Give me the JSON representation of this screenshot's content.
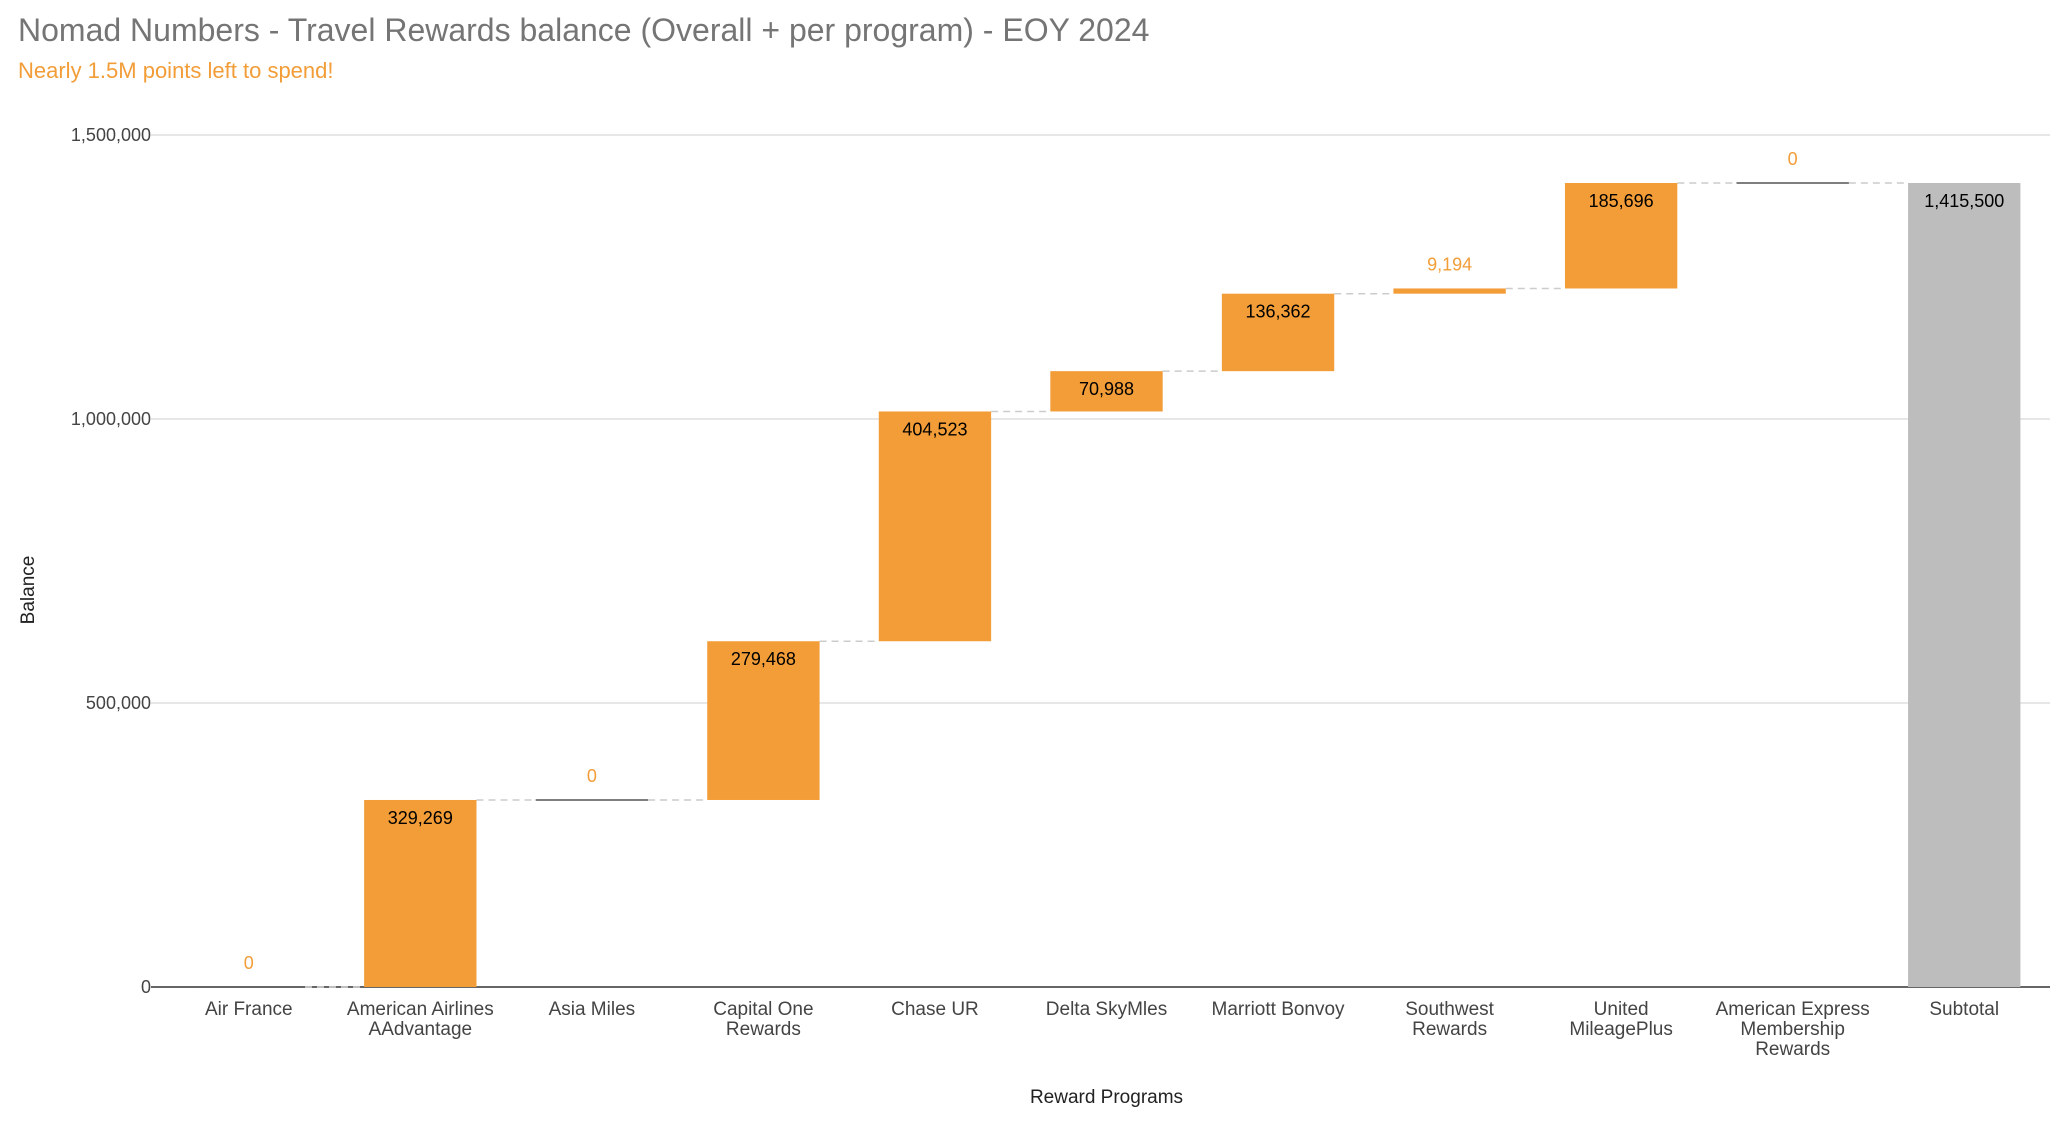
{
  "chart_data": {
    "type": "waterfall",
    "title": "Nomad Numbers - Travel Rewards balance (Overall + per program) - EOY 2024",
    "subtitle": "Nearly 1.5M points left to spend!",
    "xlabel": "Reward Programs",
    "ylabel": "Balance",
    "ylim": [
      0,
      1500000
    ],
    "yticks": [
      0,
      500000,
      1000000,
      1500000
    ],
    "ytick_labels": [
      "0",
      "500,000",
      "1,000,000",
      "1,500,000"
    ],
    "grid": true,
    "categories": [
      [
        "Air France"
      ],
      [
        "American Airlines",
        "AAdvantage"
      ],
      [
        "Asia Miles"
      ],
      [
        "Capital One",
        "Rewards"
      ],
      [
        "Chase UR"
      ],
      [
        "Delta SkyMles"
      ],
      [
        "Marriott Bonvoy"
      ],
      [
        "Southwest",
        "Rewards"
      ],
      [
        "United",
        "MileagePlus"
      ],
      [
        "American Express",
        "Membership",
        "Rewards"
      ],
      [
        "Subtotal"
      ]
    ],
    "values": [
      0,
      329269,
      0,
      279468,
      404523,
      70988,
      136362,
      9194,
      185696,
      0,
      1415500
    ],
    "value_labels": [
      "0",
      "329,269",
      "0",
      "279,468",
      "404,523",
      "70,988",
      "136,362",
      "9,194",
      "185,696",
      "0",
      "1,415,500"
    ],
    "is_subtotal": [
      false,
      false,
      false,
      false,
      false,
      false,
      false,
      false,
      false,
      false,
      true
    ],
    "colors": {
      "increase": "#f29d38",
      "subtotal": "#bdbdbd",
      "zero_line": "#555555",
      "connector": "#cccccc",
      "grid": "#cfcfcf",
      "label_outside": "#f29d38",
      "label_inside": "#000000"
    }
  }
}
